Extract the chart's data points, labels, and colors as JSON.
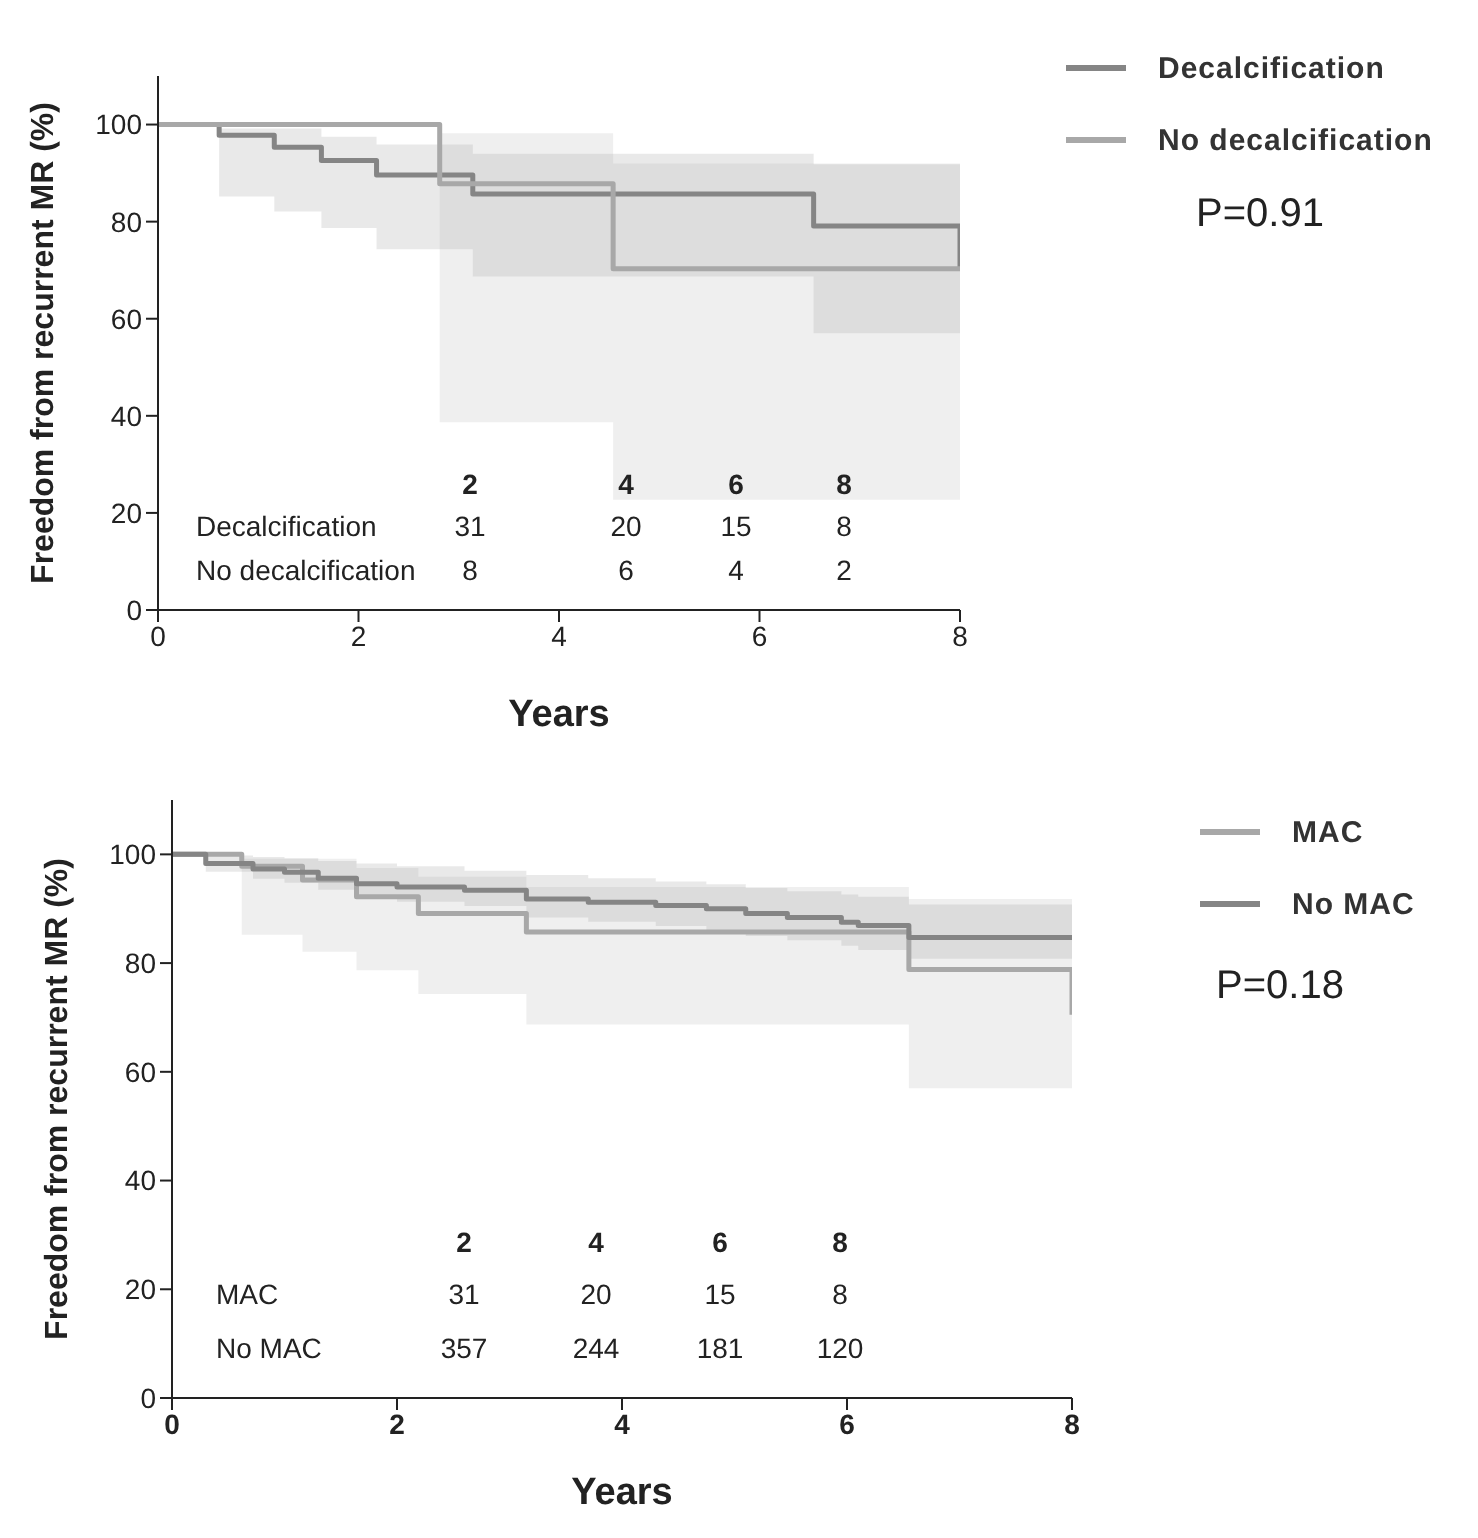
{
  "chart_data": [
    {
      "type": "line",
      "xlabel": "Years",
      "ylabel": "Freedom from recurrent MR (%)",
      "xlim": [
        0,
        8
      ],
      "xticks": [
        0,
        2,
        4,
        6,
        8
      ],
      "ylim": [
        0,
        110
      ],
      "yticks": [
        0,
        20,
        40,
        60,
        80,
        100
      ],
      "legend": "right",
      "annotations": [
        "2",
        "4",
        "6",
        "8",
        "Decalcification",
        "31",
        "20",
        "15",
        "8",
        "No decalcification",
        "8",
        "6",
        "4",
        "2",
        "P=0.91"
      ],
      "series": [
        {
          "name": "Decalcification",
          "color": "#858585",
          "x": [
            0,
            0.61,
            0.61,
            1.16,
            1.16,
            1.63,
            1.63,
            2.18,
            2.18,
            3.14,
            3.14,
            6.54,
            6.54,
            8,
            8
          ],
          "values": [
            100,
            100,
            97.8,
            97.8,
            95.3,
            95.3,
            92.6,
            92.6,
            89.6,
            89.6,
            85.7,
            85.7,
            79.1,
            79.1,
            70.3
          ],
          "lower": [
            null,
            85.2,
            85.2,
            85.2,
            82.1,
            82.1,
            78.7,
            78.7,
            74.3,
            74.3,
            68.7,
            68.7,
            57.0,
            57.0,
            57.0
          ],
          "upper": [
            null,
            99.2,
            99.2,
            99.2,
            99.2,
            99.2,
            97.5,
            97.5,
            95.9,
            95.9,
            94.0,
            94.0,
            91.8,
            91.8,
            91.8
          ]
        },
        {
          "name": "No decalcification",
          "color": "#a8a8a8",
          "x": [
            0,
            2.81,
            2.81,
            4.54,
            4.54,
            8
          ],
          "values": [
            100,
            100,
            87.8,
            87.8,
            70.3,
            70.3
          ],
          "lower": [
            null,
            38.7,
            38.7,
            38.7,
            22.7,
            22.7
          ],
          "upper": [
            null,
            98.2,
            98.2,
            98.2,
            92.0,
            92.0
          ]
        }
      ]
    },
    {
      "type": "line",
      "xlabel": "Years",
      "ylabel": "Freedom from recurrent MR (%)",
      "xlim": [
        0,
        8
      ],
      "xticks": [
        0,
        2,
        4,
        6,
        8
      ],
      "ylim": [
        0,
        110
      ],
      "yticks": [
        0,
        20,
        40,
        60,
        80,
        100
      ],
      "legend": "right",
      "annotations": [
        "2",
        "4",
        "6",
        "8",
        "MAC",
        "31",
        "20",
        "15",
        "8",
        "No MAC",
        "357",
        "244",
        "181",
        "120",
        "P=0.18"
      ],
      "series": [
        {
          "name": "MAC",
          "color": "#a8a8a8",
          "x": [
            0,
            0.62,
            0.62,
            1.16,
            1.16,
            1.64,
            1.64,
            2.19,
            2.19,
            3.15,
            3.15,
            6.55,
            6.55,
            8,
            8
          ],
          "values": [
            100,
            100,
            97.8,
            97.8,
            95.3,
            95.3,
            92.2,
            92.2,
            89.1,
            89.1,
            85.7,
            85.7,
            78.8,
            78.8,
            70.5
          ],
          "lower": [
            null,
            85.2,
            85.2,
            85.2,
            82.1,
            82.1,
            78.7,
            78.7,
            74.3,
            74.3,
            68.7,
            68.7,
            57.0,
            57.0,
            57.0
          ],
          "upper": [
            null,
            99.2,
            99.2,
            99.2,
            99.2,
            99.2,
            97.5,
            97.5,
            95.9,
            95.9,
            94.0,
            94.0,
            91.8,
            91.8,
            91.8
          ]
        },
        {
          "name": "No MAC",
          "color": "#858585",
          "x": [
            0,
            0.3,
            0.3,
            0.72,
            0.72,
            1.0,
            1.0,
            1.3,
            1.3,
            1.64,
            1.64,
            2.0,
            2.0,
            2.6,
            2.6,
            3.15,
            3.15,
            3.7,
            3.7,
            4.3,
            4.3,
            4.75,
            4.75,
            5.1,
            5.1,
            5.47,
            5.47,
            5.95,
            5.95,
            6.1,
            6.1,
            6.55,
            6.55,
            8
          ],
          "values": [
            100,
            100,
            98.3,
            98.3,
            97.3,
            97.3,
            96.7,
            96.7,
            95.6,
            95.6,
            94.6,
            94.6,
            94.0,
            94.0,
            93.4,
            93.4,
            91.8,
            91.8,
            91.2,
            91.2,
            90.6,
            90.6,
            90.0,
            90.0,
            89.1,
            89.1,
            88.4,
            88.4,
            87.5,
            87.5,
            86.9,
            86.9,
            84.7,
            84.7
          ],
          "lower": [
            100,
            100,
            96.8,
            96.8,
            95.5,
            95.5,
            94.8,
            94.8,
            93.5,
            93.5,
            92.2,
            92.2,
            91.3,
            91.3,
            90.5,
            90.5,
            88.4,
            88.4,
            87.6,
            87.6,
            86.8,
            86.8,
            86.0,
            86.0,
            85.0,
            85.0,
            84.2,
            84.2,
            83.2,
            83.2,
            82.4,
            82.4,
            80.8,
            80.8
          ],
          "upper": [
            100,
            100,
            99.8,
            99.8,
            99.5,
            99.5,
            99.3,
            99.3,
            98.8,
            98.8,
            98.3,
            98.3,
            97.8,
            97.8,
            97.0,
            97.0,
            96.2,
            96.2,
            95.6,
            95.6,
            95.0,
            95.0,
            94.5,
            94.5,
            93.8,
            93.8,
            93.2,
            93.2,
            92.6,
            92.6,
            92.2,
            92.2,
            90.8,
            90.8
          ]
        }
      ]
    }
  ]
}
